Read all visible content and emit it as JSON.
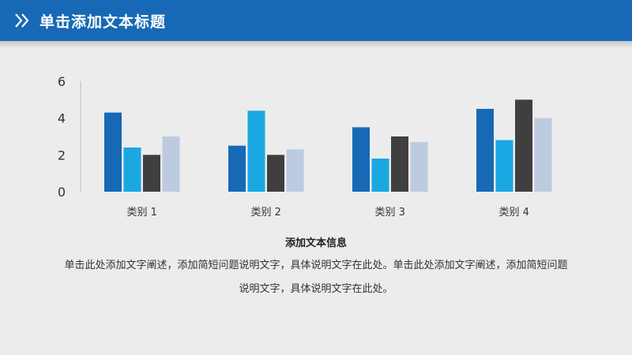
{
  "header": {
    "title": "单击添加文本标题",
    "accent": "#1769b5"
  },
  "chart_data": {
    "type": "bar",
    "categories": [
      "类别 1",
      "类别 2",
      "类别 3",
      "类别 4"
    ],
    "series": [
      {
        "values": [
          4.3,
          2.5,
          3.5,
          4.5
        ],
        "color": "#1769b5"
      },
      {
        "values": [
          2.4,
          4.4,
          1.8,
          2.8
        ],
        "color": "#1aa8e2"
      },
      {
        "values": [
          2.0,
          2.0,
          3.0,
          5.0
        ],
        "color": "#3f3f3f"
      },
      {
        "values": [
          3.0,
          2.3,
          2.7,
          4.0
        ],
        "color": "#bccbe0"
      }
    ],
    "yticks": [
      0,
      2,
      4,
      6
    ],
    "ylim": [
      0,
      6
    ],
    "grid": false,
    "legend": "none"
  },
  "caption": {
    "title": "添加文本信息",
    "body": "单击此处添加文字阐述，添加简短问题说明文字，具体说明文字在此处。单击此处添加文字阐述，添加简短问题说明文字，具体说明文字在此处。"
  }
}
